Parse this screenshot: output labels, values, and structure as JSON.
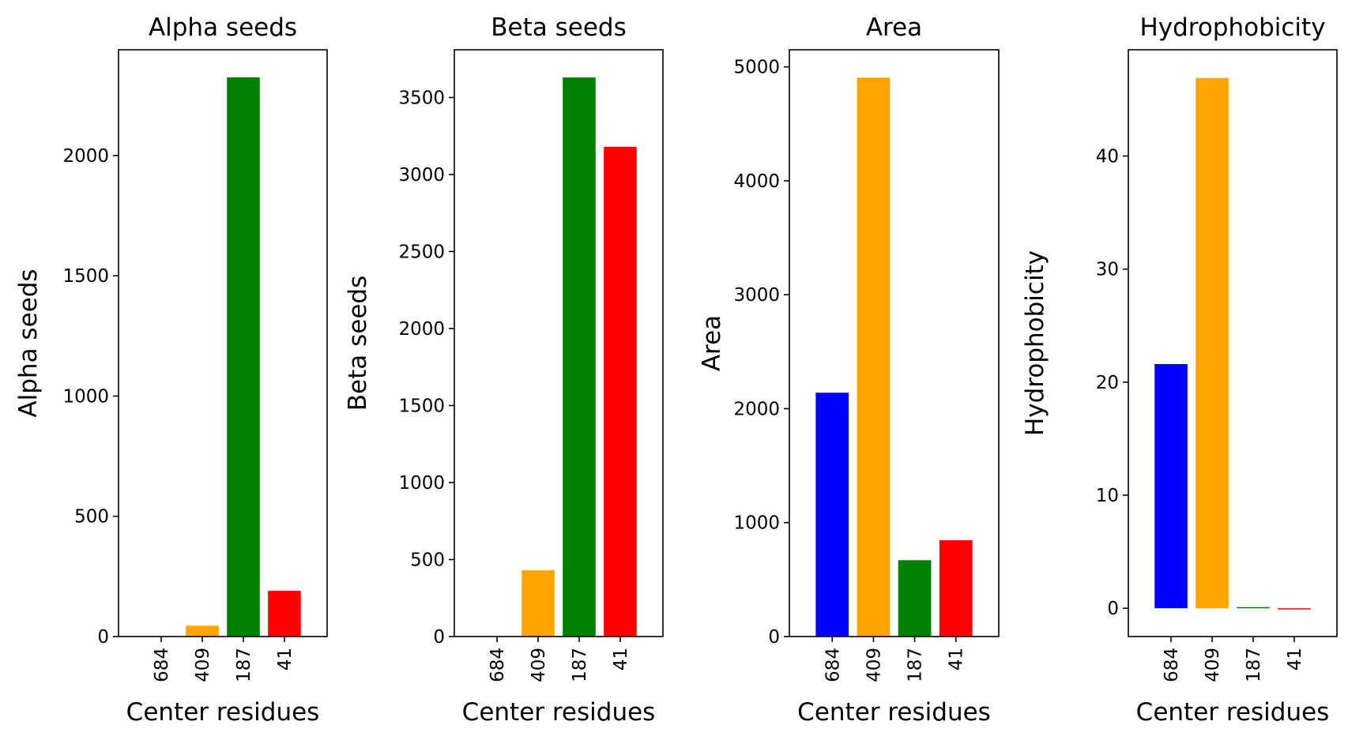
{
  "chart_data": [
    {
      "type": "bar",
      "title": "Alpha seeds",
      "xlabel": "Center residues",
      "ylabel": "Alpha seeds",
      "categories": [
        "684",
        "409",
        "187",
        "41"
      ],
      "values": [
        0,
        45,
        2325,
        190
      ],
      "colors": [
        "#0000ff",
        "#ffa500",
        "#008000",
        "#ff0000"
      ],
      "ylim": [
        0,
        2440
      ],
      "yticks": [
        0,
        500,
        1000,
        1500,
        2000
      ],
      "grid": false
    },
    {
      "type": "bar",
      "title": "Beta seeds",
      "xlabel": "Center residues",
      "ylabel": "Beta seeds",
      "categories": [
        "684",
        "409",
        "187",
        "41"
      ],
      "values": [
        0,
        430,
        3630,
        3180
      ],
      "colors": [
        "#0000ff",
        "#ffa500",
        "#008000",
        "#ff0000"
      ],
      "ylim": [
        0,
        3810
      ],
      "yticks": [
        0,
        500,
        1000,
        1500,
        2000,
        2500,
        3000,
        3500
      ],
      "grid": false
    },
    {
      "type": "bar",
      "title": "Area",
      "xlabel": "Center residues",
      "ylabel": "Area",
      "categories": [
        "684",
        "409",
        "187",
        "41"
      ],
      "values": [
        2140,
        4905,
        670,
        845
      ],
      "colors": [
        "#0000ff",
        "#ffa500",
        "#008000",
        "#ff0000"
      ],
      "ylim": [
        0,
        5150
      ],
      "yticks": [
        0,
        1000,
        2000,
        3000,
        4000,
        5000
      ],
      "grid": false
    },
    {
      "type": "bar",
      "title": "Hydrophobicity",
      "xlabel": "Center residues",
      "ylabel": "Hydrophobicity",
      "categories": [
        "684",
        "409",
        "187",
        "41"
      ],
      "values": [
        21.6,
        46.9,
        0.05,
        -0.1
      ],
      "colors": [
        "#0000ff",
        "#ffa500",
        "#008000",
        "#ff0000"
      ],
      "ylim": [
        -2.5,
        49.4
      ],
      "yticks": [
        0,
        10,
        20,
        30,
        40
      ],
      "grid": false
    }
  ]
}
